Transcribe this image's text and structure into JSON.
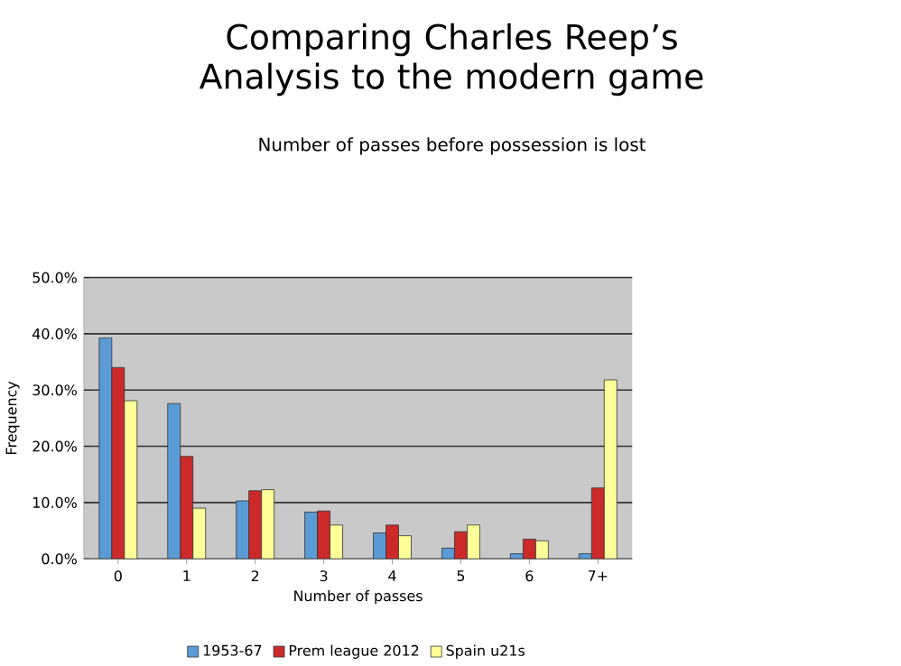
{
  "chart_data": {
    "type": "bar",
    "title": "Comparing Charles Reep’s Analysis to the modern game",
    "subtitle": "Number of passes before possession is lost",
    "xlabel": "Number of passes",
    "ylabel": "Frequency",
    "categories": [
      "0",
      "1",
      "2",
      "3",
      "4",
      "5",
      "6",
      "7+"
    ],
    "series": [
      {
        "name": "1953-67",
        "color": "#5b9bd5",
        "values": [
          39.3,
          27.6,
          10.3,
          8.3,
          4.6,
          1.9,
          0.9,
          0.9
        ]
      },
      {
        "name": "Prem league 2012",
        "color": "#cc2a2a",
        "values": [
          34.0,
          18.2,
          12.1,
          8.5,
          6.0,
          4.8,
          3.5,
          12.6
        ]
      },
      {
        "name": "Spain  u21s",
        "color": "#ffff99",
        "values": [
          28.1,
          9.0,
          12.3,
          6.0,
          4.1,
          6.0,
          3.2,
          31.8
        ]
      }
    ],
    "ylim": [
      0,
      50
    ],
    "yticks": [
      {
        "value": 0,
        "label": "0.0%"
      },
      {
        "value": 10,
        "label": "10.0%"
      },
      {
        "value": 20,
        "label": "20.0%"
      },
      {
        "value": 30,
        "label": "30.0%"
      },
      {
        "value": 40,
        "label": "40.0%"
      },
      {
        "value": 50,
        "label": "50.0%"
      }
    ],
    "grid": "y",
    "legend": "bottom"
  }
}
